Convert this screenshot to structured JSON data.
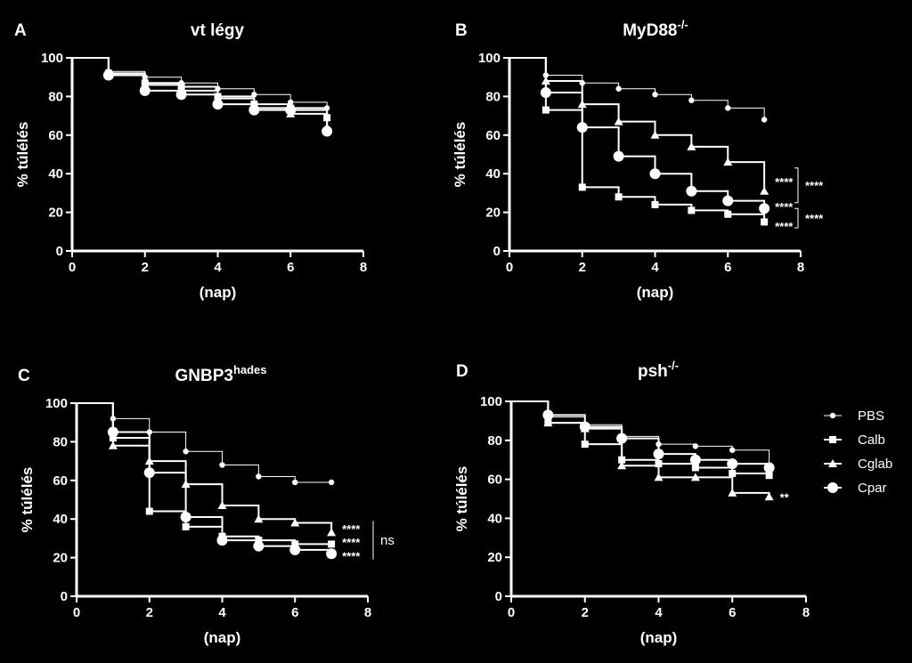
{
  "colors": {
    "background": "#000000",
    "foreground": "#ffffff"
  },
  "legend": [
    {
      "name": "PBS",
      "marker": "circle-small"
    },
    {
      "name": "Calb",
      "marker": "square"
    },
    {
      "name": "Cglab",
      "marker": "triangle"
    },
    {
      "name": "Cpar",
      "marker": "circle-large"
    }
  ],
  "chart_data": [
    {
      "type": "line",
      "letter": "A",
      "title": "vt légy",
      "title_sup": "",
      "xlabel": "(nap)",
      "ylabel": "% túlélés",
      "xlim": [
        0,
        8
      ],
      "ylim": [
        0,
        100
      ],
      "xticks": [
        0,
        2,
        4,
        6,
        8
      ],
      "yticks": [
        0,
        20,
        40,
        60,
        80,
        100
      ],
      "series": [
        {
          "name": "PBS",
          "x": [
            0,
            1,
            2,
            3,
            4,
            5,
            6,
            7
          ],
          "values": [
            100,
            93,
            90,
            87,
            84,
            81,
            77,
            74
          ]
        },
        {
          "name": "Calb",
          "x": [
            0,
            1,
            2,
            3,
            4,
            5,
            6,
            7
          ],
          "values": [
            100,
            92,
            87,
            85,
            80,
            76,
            74,
            69
          ]
        },
        {
          "name": "Cglab",
          "x": [
            0,
            1,
            2,
            3,
            4,
            5,
            6,
            7
          ],
          "values": [
            100,
            91,
            86,
            83,
            79,
            74,
            71,
            64
          ]
        },
        {
          "name": "Cpar",
          "x": [
            0,
            1,
            2,
            3,
            4,
            5,
            6,
            7
          ],
          "values": [
            100,
            91,
            83,
            81,
            76,
            73,
            73,
            62
          ]
        }
      ],
      "annotations": []
    },
    {
      "type": "line",
      "letter": "B",
      "title": "MyD88",
      "title_sup": "-/-",
      "xlabel": "(nap)",
      "ylabel": "% túlélés",
      "xlim": [
        0,
        8
      ],
      "ylim": [
        0,
        100
      ],
      "xticks": [
        0,
        2,
        4,
        6,
        8
      ],
      "yticks": [
        0,
        20,
        40,
        60,
        80,
        100
      ],
      "series": [
        {
          "name": "PBS",
          "x": [
            0,
            1,
            2,
            3,
            4,
            5,
            6,
            7
          ],
          "values": [
            100,
            91,
            87,
            84,
            81,
            78,
            74,
            68
          ]
        },
        {
          "name": "Calb",
          "x": [
            0,
            1,
            2,
            3,
            4,
            5,
            6,
            7
          ],
          "values": [
            100,
            73,
            33,
            28,
            24,
            21,
            19,
            15
          ]
        },
        {
          "name": "Cglab",
          "x": [
            0,
            1,
            2,
            3,
            4,
            5,
            6,
            7
          ],
          "values": [
            100,
            88,
            76,
            67,
            60,
            54,
            46,
            31
          ]
        },
        {
          "name": "Cpar",
          "x": [
            0,
            1,
            2,
            3,
            4,
            5,
            6,
            7
          ],
          "values": [
            100,
            82,
            64,
            49,
            40,
            31,
            26,
            22
          ]
        }
      ],
      "annotations": [
        {
          "text": "****",
          "x": 7,
          "y": 36
        },
        {
          "text": "****",
          "x": 7,
          "y": 23
        },
        {
          "text": "****",
          "x": 7,
          "y": 13
        }
      ],
      "brackets": [
        {
          "text": "****",
          "y1": 43,
          "y2": 25
        },
        {
          "text": "****",
          "y1": 22,
          "y2": 12
        }
      ]
    },
    {
      "type": "line",
      "letter": "C",
      "title": "GNBP3",
      "title_sup": "hades",
      "xlabel": "(nap)",
      "ylabel": "% túlélés",
      "xlim": [
        0,
        8
      ],
      "ylim": [
        0,
        100
      ],
      "xticks": [
        0,
        2,
        4,
        6,
        8
      ],
      "yticks": [
        0,
        20,
        40,
        60,
        80,
        100
      ],
      "series": [
        {
          "name": "PBS",
          "x": [
            0,
            1,
            2,
            3,
            4,
            5,
            6,
            7
          ],
          "values": [
            100,
            92,
            85,
            75,
            68,
            62,
            59,
            59
          ]
        },
        {
          "name": "Calb",
          "x": [
            0,
            1,
            2,
            3,
            4,
            5,
            6,
            7
          ],
          "values": [
            100,
            82,
            44,
            36,
            31,
            29,
            27,
            27
          ]
        },
        {
          "name": "Cglab",
          "x": [
            0,
            1,
            2,
            3,
            4,
            5,
            6,
            7
          ],
          "values": [
            100,
            78,
            70,
            58,
            47,
            40,
            38,
            33
          ]
        },
        {
          "name": "Cpar",
          "x": [
            0,
            1,
            2,
            3,
            4,
            5,
            6,
            7
          ],
          "values": [
            100,
            85,
            64,
            41,
            29,
            26,
            24,
            22
          ]
        }
      ],
      "annotations": [
        {
          "text": "****",
          "x": 7,
          "y": 35
        },
        {
          "text": "****",
          "x": 7,
          "y": 28
        },
        {
          "text": "****",
          "x": 7,
          "y": 21
        }
      ],
      "brackets": [
        {
          "text": "ns",
          "y1": 39,
          "y2": 19
        }
      ]
    },
    {
      "type": "line",
      "letter": "D",
      "title": "psh",
      "title_sup": "-/-",
      "xlabel": "(nap)",
      "ylabel": "% túlélés",
      "xlim": [
        0,
        8
      ],
      "ylim": [
        0,
        100
      ],
      "xticks": [
        0,
        2,
        4,
        6,
        8
      ],
      "yticks": [
        0,
        20,
        40,
        60,
        80,
        100
      ],
      "series": [
        {
          "name": "PBS",
          "x": [
            0,
            1,
            2,
            3,
            4,
            5,
            6,
            7
          ],
          "values": [
            100,
            92,
            88,
            82,
            78,
            77,
            75,
            67
          ]
        },
        {
          "name": "Calb",
          "x": [
            0,
            1,
            2,
            3,
            4,
            5,
            6,
            7
          ],
          "values": [
            100,
            89,
            78,
            70,
            68,
            66,
            63,
            62
          ]
        },
        {
          "name": "Cglab",
          "x": [
            0,
            1,
            2,
            3,
            4,
            5,
            6,
            7
          ],
          "values": [
            100,
            89,
            86,
            67,
            61,
            61,
            53,
            51
          ]
        },
        {
          "name": "Cpar",
          "x": [
            0,
            1,
            2,
            3,
            4,
            5,
            6,
            7
          ],
          "values": [
            100,
            93,
            87,
            81,
            73,
            70,
            68,
            66
          ]
        }
      ],
      "annotations": [
        {
          "text": "**",
          "x": 7,
          "y": 51
        }
      ],
      "brackets": []
    }
  ]
}
